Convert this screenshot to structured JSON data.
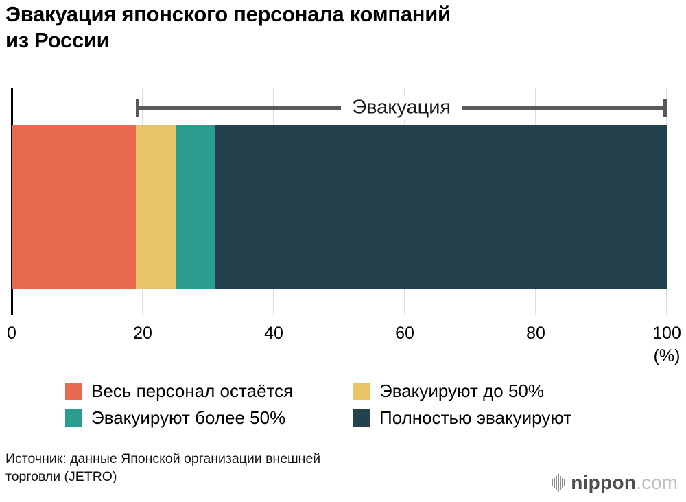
{
  "header": {
    "title_line1": "Эвакуация японского персонала компаний",
    "title_line2": "из России"
  },
  "chart_data": {
    "type": "bar",
    "orientation": "horizontal-stacked",
    "xlim": [
      0,
      100
    ],
    "xticks": [
      0,
      20,
      40,
      60,
      80,
      100
    ],
    "x_unit": "(%)",
    "grid": true,
    "legend_position": "bottom",
    "segments": [
      {
        "label": "Весь персонал остаётся",
        "value": 19,
        "color": "#E8694E"
      },
      {
        "label": "Эвакуируют до 50%",
        "value": 6,
        "color": "#E9C469"
      },
      {
        "label": "Эвакуируют более 50%",
        "value": 6,
        "color": "#2A9D8F"
      },
      {
        "label": "Полностью эвакуируют",
        "value": 69,
        "color": "#24414E"
      }
    ],
    "annotation": {
      "label": "Эвакуация",
      "from": 19,
      "to": 100
    }
  },
  "footer": {
    "source_line1": "Источник: данные Японской организации внешней",
    "source_line2": "торговли (JETRO)",
    "logo": {
      "brand": "nippon",
      "tld": ".com"
    }
  }
}
